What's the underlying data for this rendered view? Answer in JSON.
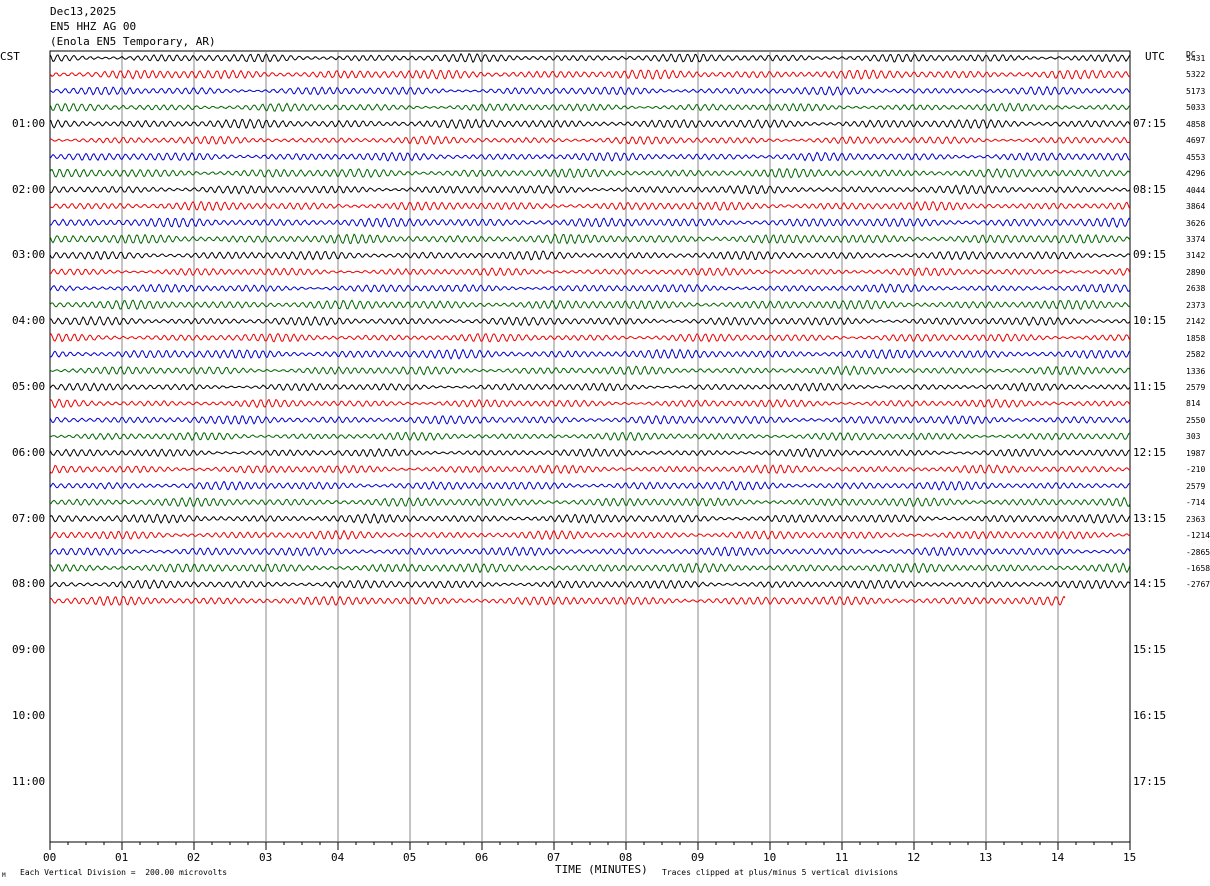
{
  "header": {
    "date": "Dec13,2025",
    "channel": "EN5 HHZ AG 00",
    "station": "(Enola EN5 Temporary, AR)"
  },
  "left_tz": "CST",
  "right_tz": "UTC",
  "dc_header": "DC",
  "footer": {
    "xlabel": "TIME (MINUTES)",
    "scale_note": "Each Vertical Division =  200.00 microvolts",
    "clip_note": "Traces clipped at plus/minus 5 vertical divisions",
    "corner_mark": "M"
  },
  "colors": {
    "trace_cycle": [
      "#000000",
      "#ee0000",
      "#0000cc",
      "#006600"
    ],
    "grid": "#888888",
    "frame": "#000000"
  },
  "chart_data": {
    "type": "line",
    "plot": "helicorder",
    "x_ticks": [
      "00",
      "01",
      "02",
      "03",
      "04",
      "05",
      "06",
      "07",
      "08",
      "09",
      "10",
      "11",
      "12",
      "13",
      "14",
      "15"
    ],
    "xlim": [
      0,
      15
    ],
    "rows_per_hour": 4,
    "minutes_per_row": 15,
    "left_hour_labels": [
      "01:00",
      "02:00",
      "03:00",
      "04:00",
      "05:00",
      "06:00",
      "07:00",
      "08:00",
      "09:00",
      "10:00",
      "11:00"
    ],
    "right_hour_labels": [
      "07:15",
      "08:15",
      "09:15",
      "10:15",
      "11:15",
      "12:15",
      "13:15",
      "14:15",
      "15:15",
      "16:15",
      "17:15"
    ],
    "trace_rows": 34,
    "last_row_end_minute": 14.1,
    "dc_offsets": [
      "5431",
      "5322",
      "5173",
      "5033",
      "4858",
      "4697",
      "4553",
      "4296",
      "4044",
      "3864",
      "3626",
      "3374",
      "3142",
      "2890",
      "2638",
      "2373",
      "2142",
      "1858",
      "2582",
      "1336",
      "2579",
      "814",
      "2550",
      "303",
      "1987",
      "-210",
      "2579",
      "-714",
      "2363",
      "-1214",
      "-2865",
      "-1658",
      "-2767"
    ]
  }
}
